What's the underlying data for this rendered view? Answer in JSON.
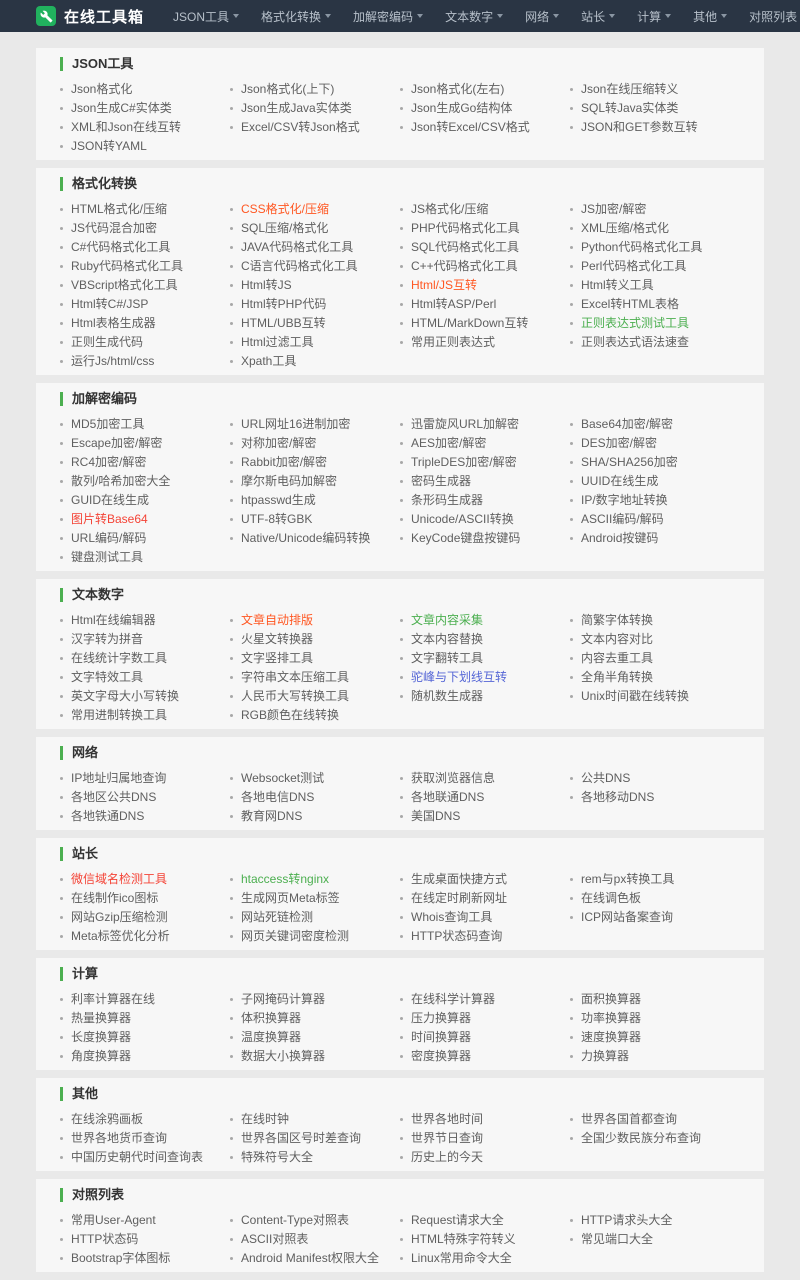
{
  "navbar": {
    "title": "在线工具箱",
    "menu": [
      "JSON工具",
      "格式化转换",
      "加解密编码",
      "文本数字",
      "网络",
      "站长",
      "计算",
      "其他",
      "对照列表"
    ]
  },
  "colors": {
    "navbar-bg": "#2a3544",
    "brand-green": "#21b15e",
    "accent-green": "#4caf50",
    "link-gray": "#5f5f5f",
    "orange": "#ff5722",
    "red": "#f44336",
    "green": "#4caf50",
    "blue": "#5566d6"
  },
  "highlights": {
    "CSS格式化/压缩": "orange",
    "Html/JS互转": "orange",
    "正则表达式测试工具": "green",
    "图片转Base64": "red",
    "文章自动排版": "orange",
    "文章内容采集": "green",
    "驼峰与下划线互转": "blue",
    "微信域名检测工具": "red",
    "htaccess转nginx": "green"
  },
  "sections": [
    {
      "title": "JSON工具",
      "items": [
        "Json格式化",
        "Json格式化(上下)",
        "Json格式化(左右)",
        "Json在线压缩转义",
        "Json生成C#实体类",
        "Json生成Java实体类",
        "Json生成Go结构体",
        "SQL转Java实体类",
        "XML和Json在线互转",
        "Excel/CSV转Json格式",
        "Json转Excel/CSV格式",
        "JSON和GET参数互转",
        "JSON转YAML"
      ]
    },
    {
      "title": "格式化转换",
      "items": [
        "HTML格式化/压缩",
        "CSS格式化/压缩",
        "JS格式化/压缩",
        "JS加密/解密",
        "JS代码混合加密",
        "SQL压缩/格式化",
        "PHP代码格式化工具",
        "XML压缩/格式化",
        "C#代码格式化工具",
        "JAVA代码格式化工具",
        "SQL代码格式化工具",
        "Python代码格式化工具",
        "Ruby代码格式化工具",
        "C语言代码格式化工具",
        "C++代码格式化工具",
        "Perl代码格式化工具",
        "VBScript格式化工具",
        "Html转JS",
        "Html/JS互转",
        "Html转义工具",
        "Html转C#/JSP",
        "Html转PHP代码",
        "Html转ASP/Perl",
        "Excel转HTML表格",
        "Html表格生成器",
        "HTML/UBB互转",
        "HTML/MarkDown互转",
        "正则表达式测试工具",
        "正则生成代码",
        "Html过滤工具",
        "常用正则表达式",
        "正则表达式语法速查",
        "运行Js/html/css",
        "Xpath工具"
      ]
    },
    {
      "title": "加解密编码",
      "items": [
        "MD5加密工具",
        "URL网址16进制加密",
        "迅雷旋风URL加解密",
        "Base64加密/解密",
        "Escape加密/解密",
        "对称加密/解密",
        "AES加密/解密",
        "DES加密/解密",
        "RC4加密/解密",
        "Rabbit加密/解密",
        "TripleDES加密/解密",
        "SHA/SHA256加密",
        "散列/哈希加密大全",
        "摩尔斯电码加解密",
        "密码生成器",
        "UUID在线生成",
        "GUID在线生成",
        "htpasswd生成",
        "条形码生成器",
        "IP/数字地址转换",
        "图片转Base64",
        "UTF-8转GBK",
        "Unicode/ASCII转换",
        "ASCII编码/解码",
        "URL编码/解码",
        "Native/Unicode编码转换",
        "KeyCode键盘按键码",
        "Android按键码",
        "键盘测试工具"
      ]
    },
    {
      "title": "文本数字",
      "items": [
        "Html在线编辑器",
        "文章自动排版",
        "文章内容采集",
        "简繁字体转换",
        "汉字转为拼音",
        "火星文转换器",
        "文本内容替换",
        "文本内容对比",
        "在线统计字数工具",
        "文字竖排工具",
        "文字翻转工具",
        "内容去重工具",
        "文字特效工具",
        "字符串文本压缩工具",
        "驼峰与下划线互转",
        "全角半角转换",
        "英文字母大小写转换",
        "人民币大写转换工具",
        "随机数生成器",
        "Unix时间戳在线转换",
        "常用进制转换工具",
        "RGB颜色在线转换"
      ]
    },
    {
      "title": "网络",
      "items": [
        "IP地址归属地查询",
        "Websocket测试",
        "获取浏览器信息",
        "公共DNS",
        "各地区公共DNS",
        "各地电信DNS",
        "各地联通DNS",
        "各地移动DNS",
        "各地铁通DNS",
        "教育网DNS",
        "美国DNS"
      ]
    },
    {
      "title": "站长",
      "items": [
        "微信域名检测工具",
        "htaccess转nginx",
        "生成桌面快捷方式",
        "rem与px转换工具",
        "在线制作ico图标",
        "生成网页Meta标签",
        "在线定时刷新网址",
        "在线调色板",
        "网站Gzip压缩检测",
        "网站死链检测",
        "Whois查询工具",
        "ICP网站备案查询",
        "Meta标签优化分析",
        "网页关键词密度检测",
        "HTTP状态码查询"
      ]
    },
    {
      "title": "计算",
      "items": [
        "利率计算器在线",
        "子网掩码计算器",
        "在线科学计算器",
        "面积换算器",
        "热量换算器",
        "体积换算器",
        "压力换算器",
        "功率换算器",
        "长度换算器",
        "温度换算器",
        "时间换算器",
        "速度换算器",
        "角度换算器",
        "数据大小换算器",
        "密度换算器",
        "力换算器"
      ]
    },
    {
      "title": "其他",
      "items": [
        "在线涂鸦画板",
        "在线时钟",
        "世界各地时间",
        "世界各国首都查询",
        "世界各地货币查询",
        "世界各国区号时差查询",
        "世界节日查询",
        "全国少数民族分布查询",
        "中国历史朝代时间查询表",
        "特殊符号大全",
        "历史上的今天"
      ]
    },
    {
      "title": "对照列表",
      "items": [
        "常用User-Agent",
        "Content-Type对照表",
        "Request请求大全",
        "HTTP请求头大全",
        "HTTP状态码",
        "ASCII对照表",
        "HTML特殊字符转义",
        "常见端口大全",
        "Bootstrap字体图标",
        "Android Manifest权限大全",
        "Linux常用命令大全"
      ]
    }
  ]
}
